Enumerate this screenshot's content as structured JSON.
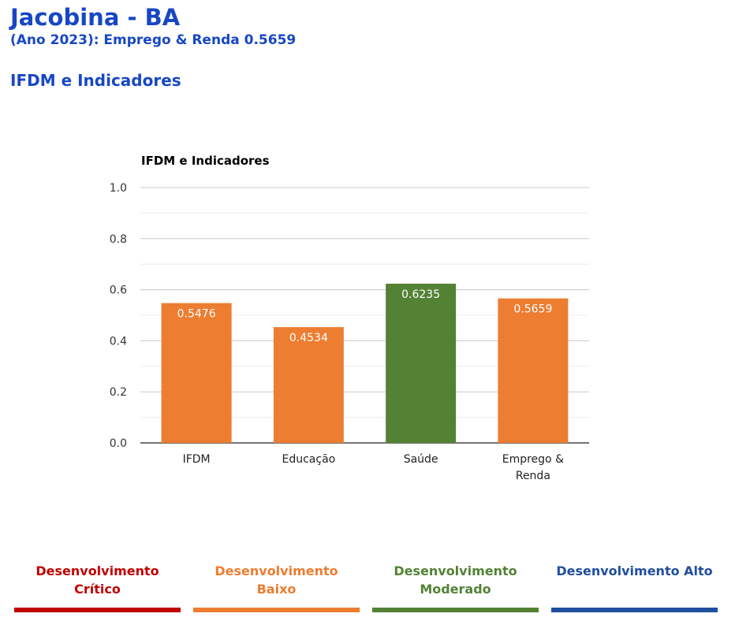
{
  "header": {
    "title": "Jacobina - BA",
    "subtitle": "(Ano 2023): Emprego & Renda 0.5659",
    "section": "IFDM e Indicadores"
  },
  "chart_data": {
    "type": "bar",
    "title": "IFDM e Indicadores",
    "categories": [
      "IFDM",
      "Educação",
      "Saúde",
      "Emprego & Renda"
    ],
    "values": [
      0.5476,
      0.4534,
      0.6235,
      0.5659
    ],
    "value_labels": [
      "0.5476",
      "0.4534",
      "0.6235",
      "0.5659"
    ],
    "colors": [
      "#ed7d31",
      "#ed7d31",
      "#548235",
      "#ed7d31"
    ],
    "ylim": [
      0,
      1
    ],
    "yticks": [
      "0.0",
      "0.2",
      "0.4",
      "0.6",
      "0.8",
      "1.0"
    ],
    "grid": true,
    "legend_position": "none"
  },
  "legend": [
    {
      "label": "Desenvolvimento Crítico",
      "color": "#c00000"
    },
    {
      "label": "Desenvolvimento Baixo",
      "color": "#ed7d31"
    },
    {
      "label": "Desenvolvimento Moderado",
      "color": "#548235"
    },
    {
      "label": "Desenvolvimento Alto",
      "color": "#1f4e9e"
    }
  ]
}
